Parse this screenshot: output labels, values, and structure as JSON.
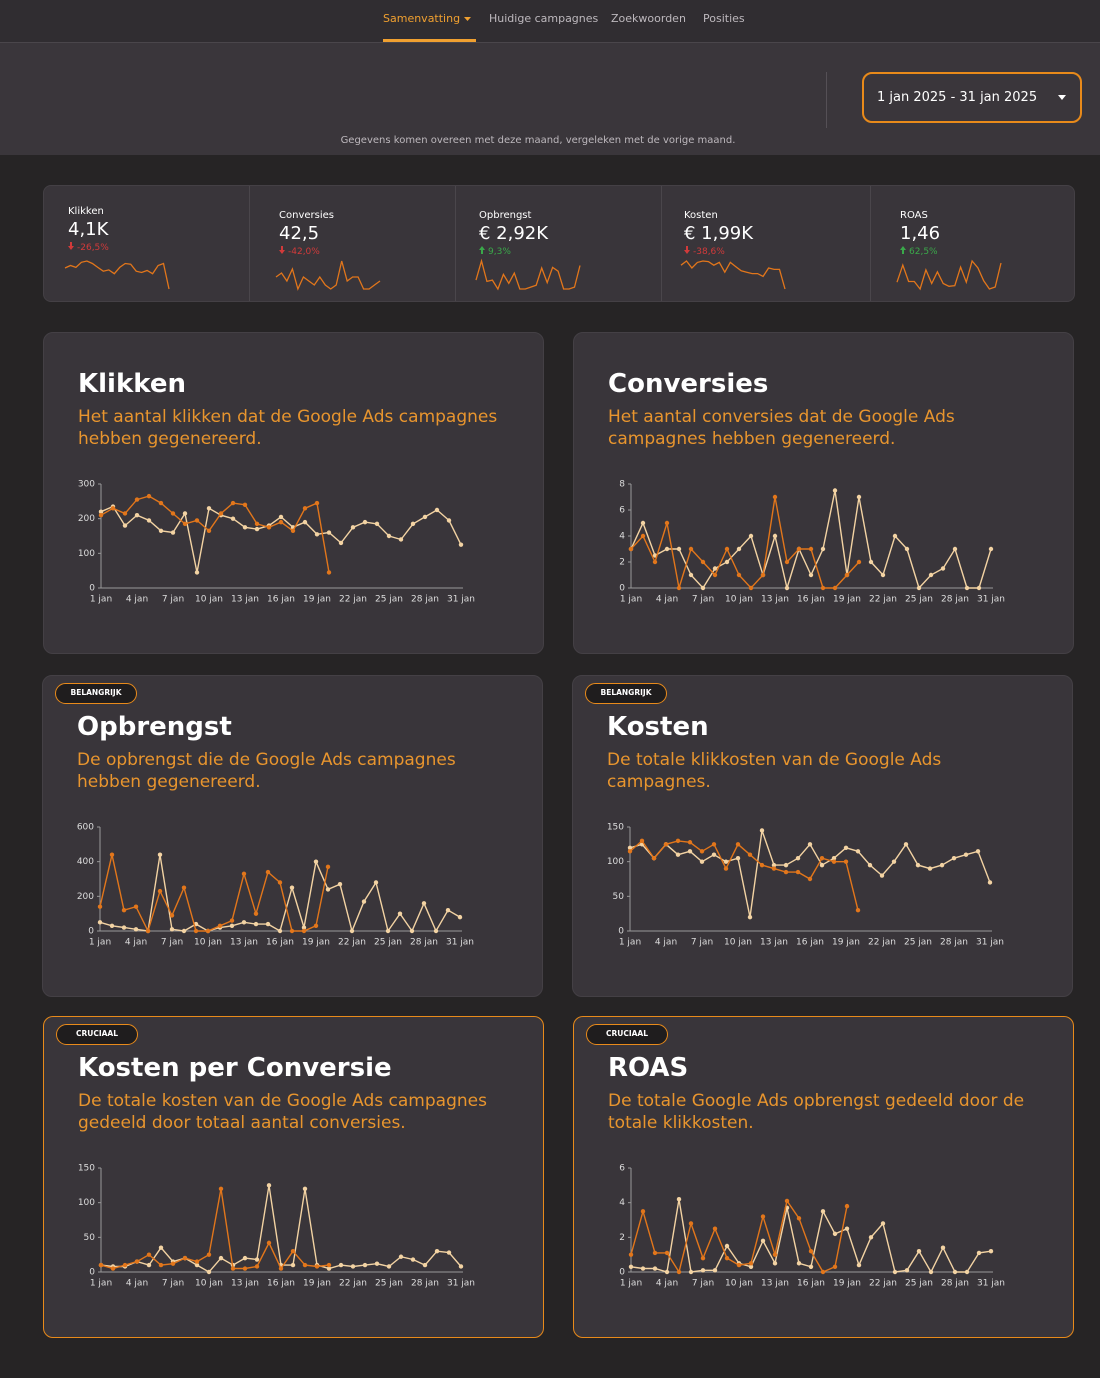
{
  "nav": {
    "items": [
      "Samenvatting",
      "Huidige campagnes",
      "Zoekwoorden",
      "Posities"
    ],
    "active": "Samenvatting"
  },
  "date_range": "1 jan 2025 - 31 jan 2025",
  "note": "Gegevens komen overeen met deze maand, vergeleken met de vorige maand.",
  "kpis": [
    {
      "label": "Klikken",
      "value": "4,1K",
      "change": "-26,5%",
      "trend": "down"
    },
    {
      "label": "Conversies",
      "value": "42,5",
      "change": "-42,0%",
      "trend": "down"
    },
    {
      "label": "Opbrengst",
      "value": "€ 2,92K",
      "change": "9,3%",
      "trend": "up"
    },
    {
      "label": "Kosten",
      "value": "€ 1,99K",
      "change": "-38,6%",
      "trend": "down"
    },
    {
      "label": "ROAS",
      "value": "1,46",
      "change": "62,5%",
      "trend": "up"
    }
  ],
  "chart_data": [
    {
      "type": "line",
      "title": "Klikken",
      "subtitle": "Het aantal klikken dat de Google Ads campagnes hebben gegenereerd.",
      "categories": [
        "1 jan",
        null,
        null,
        "4 jan",
        null,
        null,
        "7 jan",
        null,
        null,
        "10 jan",
        null,
        null,
        "13 jan",
        null,
        null,
        "16 jan",
        null,
        null,
        "19 jan",
        null,
        null,
        "22 jan",
        null,
        null,
        "25 jan",
        null,
        null,
        "28 jan",
        null,
        null,
        "31 jan"
      ],
      "series": [
        {
          "color": "#f3d3a3",
          "values": [
            220,
            235,
            180,
            210,
            195,
            165,
            160,
            215,
            45,
            230,
            210,
            200,
            175,
            170,
            180,
            205,
            175,
            190,
            155,
            160,
            130,
            175,
            190,
            185,
            150,
            140,
            185,
            205,
            225,
            195,
            125
          ]
        },
        {
          "color": "#e2761b",
          "values": [
            210,
            230,
            215,
            255,
            265,
            245,
            215,
            185,
            195,
            165,
            215,
            245,
            240,
            185,
            175,
            190,
            165,
            230,
            245,
            45,
            null,
            null,
            null,
            null,
            null,
            null,
            null,
            null,
            null,
            null,
            null
          ]
        }
      ],
      "ylim": [
        0,
        300
      ],
      "yticks": [
        0,
        100,
        200,
        300
      ]
    },
    {
      "type": "line",
      "title": "Conversies",
      "subtitle": "Het aantal conversies dat de Google Ads campagnes hebben gegenereerd.",
      "categories": [
        "1 jan",
        null,
        null,
        "4 jan",
        null,
        null,
        "7 jan",
        null,
        null,
        "10 jan",
        null,
        null,
        "13 jan",
        null,
        null,
        "16 jan",
        null,
        null,
        "19 jan",
        null,
        null,
        "22 jan",
        null,
        null,
        "25 jan",
        null,
        null,
        "28 jan",
        null,
        null,
        "31 jan"
      ],
      "series": [
        {
          "color": "#f3d3a3",
          "values": [
            3,
            5,
            2.5,
            3,
            3,
            1,
            0,
            1.5,
            2,
            3,
            4,
            1,
            4,
            0,
            3,
            1,
            3,
            7.5,
            1,
            7,
            2,
            1,
            4,
            3,
            0,
            1,
            1.5,
            3,
            0,
            0,
            3
          ]
        },
        {
          "color": "#e2761b",
          "values": [
            3,
            4,
            2,
            5,
            0,
            3,
            2,
            1,
            3,
            1,
            0,
            1,
            7,
            2,
            3,
            3,
            0,
            0,
            1,
            2,
            null,
            null,
            null,
            null,
            null,
            null,
            null,
            null,
            null,
            null,
            null
          ]
        }
      ],
      "ylim": [
        0,
        8
      ],
      "yticks": [
        0,
        2,
        4,
        6,
        8
      ]
    },
    {
      "type": "line",
      "title": "Opbrengst",
      "badge": "BELANGRIJK",
      "subtitle": "De opbrengst die de Google Ads campagnes hebben gegenereerd.",
      "categories": [
        "1 jan",
        null,
        null,
        "4 jan",
        null,
        null,
        "7 jan",
        null,
        null,
        "10 jan",
        null,
        null,
        "13 jan",
        null,
        null,
        "16 jan",
        null,
        null,
        "19 jan",
        null,
        null,
        "22 jan",
        null,
        null,
        "25 jan",
        null,
        null,
        "28 jan",
        null,
        null,
        "31 jan"
      ],
      "series": [
        {
          "color": "#f3d3a3",
          "values": [
            50,
            30,
            20,
            10,
            0,
            440,
            10,
            0,
            40,
            0,
            20,
            30,
            50,
            40,
            40,
            0,
            250,
            20,
            400,
            240,
            270,
            0,
            170,
            280,
            0,
            100,
            0,
            160,
            0,
            120,
            80
          ]
        },
        {
          "color": "#e2761b",
          "values": [
            140,
            440,
            120,
            140,
            0,
            230,
            90,
            250,
            0,
            0,
            30,
            60,
            330,
            100,
            340,
            280,
            0,
            0,
            30,
            370,
            null,
            null,
            null,
            null,
            null,
            null,
            null,
            null,
            null,
            null,
            null
          ]
        }
      ],
      "ylim": [
        0,
        600
      ],
      "yticks": [
        0,
        200,
        400,
        600
      ]
    },
    {
      "type": "line",
      "title": "Kosten",
      "badge": "BELANGRIJK",
      "subtitle": "De totale klikkosten van de Google Ads campagnes.",
      "categories": [
        "1 jan",
        null,
        null,
        "4 jan",
        null,
        null,
        "7 jan",
        null,
        null,
        "10 jan",
        null,
        null,
        "13 jan",
        null,
        null,
        "16 jan",
        null,
        null,
        "19 jan",
        null,
        null,
        "22 jan",
        null,
        null,
        "25 jan",
        null,
        null,
        "28 jan",
        null,
        null,
        "31 jan"
      ],
      "series": [
        {
          "color": "#f3d3a3",
          "values": [
            120,
            125,
            105,
            125,
            110,
            115,
            100,
            110,
            100,
            105,
            20,
            145,
            95,
            95,
            105,
            125,
            95,
            105,
            120,
            115,
            95,
            80,
            100,
            125,
            95,
            90,
            95,
            105,
            110,
            115,
            70
          ]
        },
        {
          "color": "#e2761b",
          "values": [
            115,
            130,
            105,
            125,
            130,
            128,
            115,
            125,
            90,
            125,
            110,
            95,
            90,
            85,
            85,
            75,
            105,
            100,
            100,
            30,
            null,
            null,
            null,
            null,
            null,
            null,
            null,
            null,
            null,
            null,
            null
          ]
        }
      ],
      "ylim": [
        0,
        150
      ],
      "yticks": [
        0,
        50,
        100,
        150
      ]
    },
    {
      "type": "line",
      "title": "Kosten per Conversie",
      "badge": "CRUCIAAL",
      "subtitle": "De totale kosten van de Google Ads campagnes gedeeld door totaal aantal conversies.",
      "categories": [
        "1 jan",
        null,
        null,
        "4 jan",
        null,
        null,
        "7 jan",
        null,
        null,
        "10 jan",
        null,
        null,
        "13 jan",
        null,
        null,
        "16 jan",
        null,
        null,
        "19 jan",
        null,
        null,
        "22 jan",
        null,
        null,
        "25 jan",
        null,
        null,
        "28 jan",
        null,
        null,
        "31 jan"
      ],
      "series": [
        {
          "color": "#f3d3a3",
          "values": [
            10,
            8,
            8,
            15,
            10,
            35,
            15,
            20,
            10,
            0,
            20,
            10,
            20,
            18,
            125,
            10,
            10,
            120,
            10,
            5,
            10,
            8,
            10,
            12,
            8,
            22,
            18,
            10,
            30,
            28,
            8
          ]
        },
        {
          "color": "#e2761b",
          "values": [
            10,
            5,
            10,
            15,
            25,
            10,
            12,
            20,
            15,
            25,
            120,
            5,
            5,
            8,
            42,
            5,
            30,
            10,
            8,
            10,
            null,
            null,
            null,
            null,
            null,
            null,
            null,
            null,
            null,
            null,
            null
          ]
        }
      ],
      "ylim": [
        0,
        150
      ],
      "yticks": [
        0,
        50,
        100,
        150
      ]
    },
    {
      "type": "line",
      "title": "ROAS",
      "badge": "CRUCIAAL",
      "subtitle": "De totale Google Ads opbrengst gedeeld door de totale klikkosten.",
      "categories": [
        "1 jan",
        null,
        null,
        "4 jan",
        null,
        null,
        "7 jan",
        null,
        null,
        "10 jan",
        null,
        null,
        "13 jan",
        null,
        null,
        "16 jan",
        null,
        null,
        "19 jan",
        null,
        null,
        "22 jan",
        null,
        null,
        "25 jan",
        null,
        null,
        "28 jan",
        null,
        null,
        "31 jan"
      ],
      "series": [
        {
          "color": "#f3d3a3",
          "values": [
            0.3,
            0.2,
            0.2,
            0,
            4.2,
            0,
            0.1,
            0.1,
            1.5,
            0.5,
            0.3,
            1.8,
            0.5,
            3.7,
            0.5,
            0.3,
            3.5,
            2.2,
            2.5,
            0.4,
            2,
            2.8,
            0,
            0.1,
            1.2,
            0,
            1.4,
            0,
            0,
            1.1,
            1.2
          ]
        },
        {
          "color": "#e2761b",
          "values": [
            1,
            3.5,
            1.1,
            1.1,
            0,
            2.8,
            0.8,
            2.5,
            0.8,
            0.4,
            0.5,
            3.2,
            1,
            4.1,
            3.1,
            1.2,
            0,
            0.3,
            3.8,
            null,
            null,
            null,
            null,
            null,
            null,
            null,
            null,
            null,
            null,
            null,
            null
          ]
        }
      ],
      "ylim": [
        0,
        6
      ],
      "yticks": [
        0,
        2,
        4,
        6
      ]
    }
  ]
}
